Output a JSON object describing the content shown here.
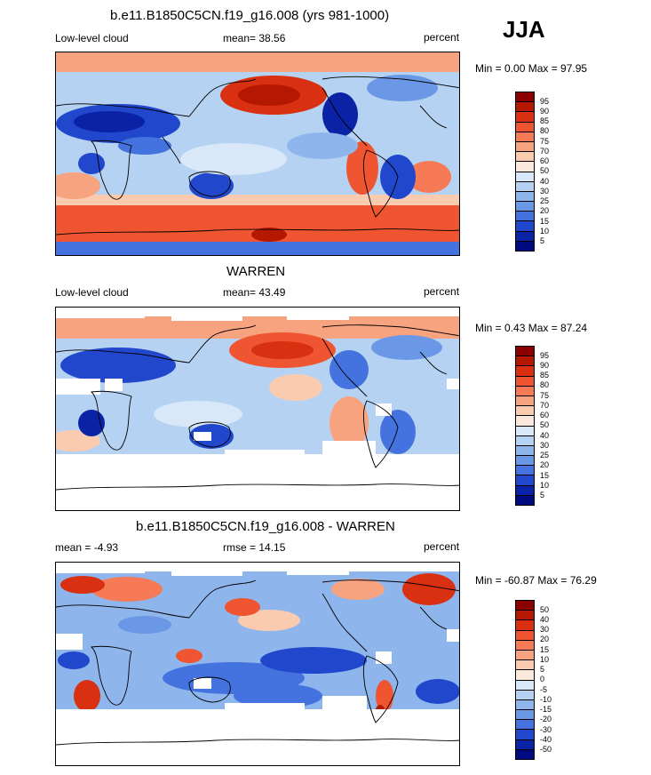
{
  "season": "JJA",
  "panels": [
    {
      "title": "b.e11.B1850C5CN.f19_g16.008 (yrs 981-1000)",
      "left_label": "Low-level cloud",
      "center_label": "mean=  38.56",
      "right_label": "percent",
      "minmax": "Min =   0.00 Max =  97.95",
      "levels": [
        "95",
        "90",
        "85",
        "80",
        "75",
        "70",
        "60",
        "50",
        "40",
        "30",
        "25",
        "20",
        "15",
        "10",
        "5"
      ]
    },
    {
      "title": "WARREN",
      "left_label": "Low-level cloud",
      "center_label": "mean=  43.49",
      "right_label": "percent",
      "minmax": "Min =   0.43 Max =  87.24",
      "levels": [
        "95",
        "90",
        "85",
        "80",
        "75",
        "70",
        "60",
        "50",
        "40",
        "30",
        "25",
        "20",
        "15",
        "10",
        "5"
      ]
    },
    {
      "title": "b.e11.B1850C5CN.f19_g16.008 - WARREN",
      "left_label": "mean =  -4.93",
      "center_label": "rmse =  14.15",
      "right_label": "percent",
      "minmax": "Min = -60.87 Max =  76.29",
      "levels": [
        "50",
        "40",
        "30",
        "20",
        "15",
        "10",
        "5",
        "0",
        "-5",
        "-10",
        "-15",
        "-20",
        "-30",
        "-40",
        "-50"
      ]
    }
  ],
  "colors": {
    "scale": [
      "#8b0000",
      "#b51800",
      "#d83010",
      "#ee5530",
      "#f57a55",
      "#f8a37f",
      "#fbcbb0",
      "#fbe9dd",
      "#d8e8f8",
      "#b5d2f2",
      "#8fb6ec",
      "#6a97e6",
      "#4473e0",
      "#2148cc",
      "#0a22a6",
      "#000a80"
    ]
  }
}
